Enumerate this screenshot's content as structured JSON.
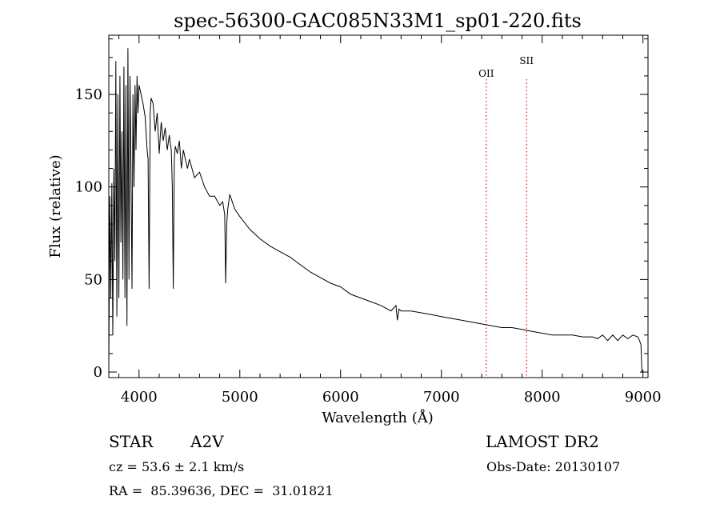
{
  "chart_data": {
    "type": "line",
    "title": "spec-56300-GAC085N33M1_sp01-220.fits",
    "xlabel": "Wavelength (Å)",
    "ylabel": "Flux (relative)",
    "xlim": [
      3700,
      9050
    ],
    "ylim": [
      -3,
      182
    ],
    "xticks": [
      4000,
      5000,
      6000,
      7000,
      8000,
      9000
    ],
    "yticks": [
      0,
      50,
      100,
      150
    ],
    "grid": false,
    "series": [
      {
        "name": "spectrum",
        "x": [
          3700,
          3710,
          3720,
          3730,
          3740,
          3750,
          3760,
          3770,
          3780,
          3790,
          3800,
          3810,
          3820,
          3830,
          3840,
          3850,
          3860,
          3870,
          3880,
          3890,
          3900,
          3910,
          3920,
          3930,
          3940,
          3950,
          3960,
          3970,
          3980,
          3990,
          4000,
          4020,
          4040,
          4060,
          4080,
          4090,
          4100,
          4110,
          4120,
          4140,
          4160,
          4180,
          4200,
          4220,
          4240,
          4260,
          4280,
          4300,
          4320,
          4330,
          4340,
          4350,
          4360,
          4380,
          4400,
          4420,
          4440,
          4460,
          4480,
          4500,
          4550,
          4600,
          4650,
          4700,
          4750,
          4800,
          4830,
          4850,
          4860,
          4870,
          4880,
          4900,
          4950,
          5000,
          5100,
          5200,
          5300,
          5400,
          5500,
          5600,
          5700,
          5800,
          5900,
          6000,
          6100,
          6200,
          6300,
          6400,
          6500,
          6550,
          6563,
          6580,
          6600,
          6700,
          6800,
          6900,
          7000,
          7100,
          7200,
          7300,
          7400,
          7500,
          7600,
          7700,
          7800,
          7900,
          8000,
          8100,
          8200,
          8300,
          8400,
          8500,
          8550,
          8600,
          8650,
          8700,
          8750,
          8800,
          8850,
          8900,
          8950,
          8980,
          8990,
          9000
        ],
        "values": [
          2,
          95,
          40,
          102,
          20,
          110,
          60,
          168,
          30,
          150,
          40,
          160,
          70,
          130,
          50,
          165,
          40,
          155,
          25,
          175,
          50,
          160,
          110,
          45,
          150,
          100,
          155,
          120,
          160,
          140,
          155,
          150,
          145,
          138,
          120,
          115,
          45,
          140,
          148,
          145,
          130,
          140,
          118,
          135,
          125,
          132,
          120,
          128,
          120,
          100,
          45,
          115,
          122,
          118,
          125,
          110,
          120,
          115,
          110,
          115,
          105,
          108,
          100,
          95,
          95,
          90,
          92,
          85,
          48,
          80,
          88,
          96,
          88,
          84,
          77,
          72,
          68,
          65,
          62,
          58,
          54,
          51,
          48,
          46,
          42,
          40,
          38,
          36,
          33,
          36,
          28,
          34,
          33,
          33,
          32,
          31,
          30,
          29,
          28,
          27,
          26,
          25,
          24,
          24,
          23,
          22,
          21,
          20,
          20,
          20,
          19,
          19,
          18,
          20,
          17,
          20,
          17,
          20,
          18,
          20,
          19,
          15,
          0,
          0
        ]
      }
    ],
    "lines": [
      {
        "label": "OII",
        "x": 7445,
        "color": "#ff0000"
      },
      {
        "label": "SII",
        "x": 7845,
        "color": "#ff0000"
      }
    ]
  },
  "info": {
    "object_class": "STAR",
    "subclass": "A2V",
    "survey": "LAMOST DR2",
    "redshift": "cz = 53.6 ± 2.1 km/s",
    "obs_date": "Obs-Date: 20130107",
    "coords": "RA =  85.39636, DEC =  31.01821"
  }
}
